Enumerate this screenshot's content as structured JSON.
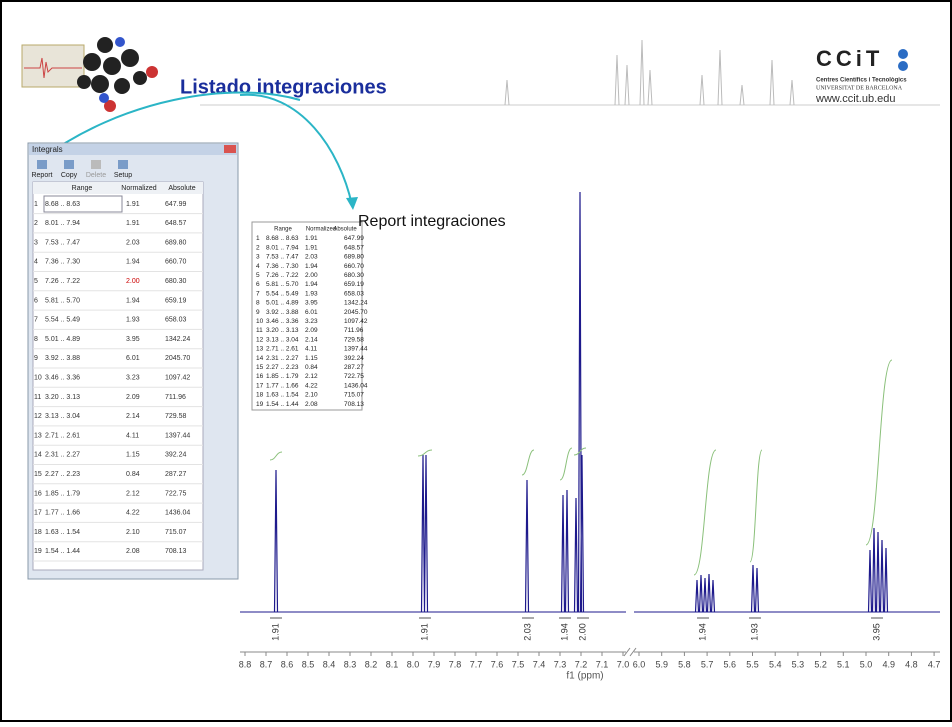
{
  "header": {
    "title": "Listado integraciones",
    "logo": {
      "name": "CCiT",
      "line1": "Centres Científics i Tecnològics",
      "line2": "UNIVERSITAT DE BARCELONA",
      "url": "www.ccit.ub.edu"
    }
  },
  "integrals_window": {
    "title": "Integrals",
    "toolbar": [
      "Report",
      "Copy",
      "Delete",
      "Setup"
    ],
    "columns": [
      "Range",
      "Normalized",
      "Absolute"
    ],
    "rows": [
      [
        "1",
        "8.68 .. 8.63",
        "1.91",
        "647.99"
      ],
      [
        "2",
        "8.01 .. 7.94",
        "1.91",
        "648.57"
      ],
      [
        "3",
        "7.53 .. 7.47",
        "2.03",
        "689.80"
      ],
      [
        "4",
        "7.36 .. 7.30",
        "1.94",
        "660.70"
      ],
      [
        "5",
        "7.26 .. 7.22",
        "2.00",
        "680.30"
      ],
      [
        "6",
        "5.81 .. 5.70",
        "1.94",
        "659.19"
      ],
      [
        "7",
        "5.54 .. 5.49",
        "1.93",
        "658.03"
      ],
      [
        "8",
        "5.01 .. 4.89",
        "3.95",
        "1342.24"
      ],
      [
        "9",
        "3.92 .. 3.88",
        "6.01",
        "2045.70"
      ],
      [
        "10",
        "3.46 .. 3.36",
        "3.23",
        "1097.42"
      ],
      [
        "11",
        "3.20 .. 3.13",
        "2.09",
        "711.96"
      ],
      [
        "12",
        "3.13 .. 3.04",
        "2.14",
        "729.58"
      ],
      [
        "13",
        "2.71 .. 2.61",
        "4.11",
        "1397.44"
      ],
      [
        "14",
        "2.31 .. 2.27",
        "1.15",
        "392.24"
      ],
      [
        "15",
        "2.27 .. 2.23",
        "0.84",
        "287.27"
      ],
      [
        "16",
        "1.85 .. 1.79",
        "2.12",
        "722.75"
      ],
      [
        "17",
        "1.77 .. 1.66",
        "4.22",
        "1436.04"
      ],
      [
        "18",
        "1.63 .. 1.54",
        "2.10",
        "715.07"
      ],
      [
        "19",
        "1.54 .. 1.44",
        "2.08",
        "708.13"
      ]
    ]
  },
  "report": {
    "annotation": "Report  integraciones",
    "columns": [
      "Range",
      "Normalized",
      "Absolute"
    ],
    "rows": [
      [
        "1",
        "8.68 .. 8.63",
        "1.91",
        "647.99"
      ],
      [
        "2",
        "8.01 .. 7.94",
        "1.91",
        "648.57"
      ],
      [
        "3",
        "7.53 .. 7.47",
        "2.03",
        "689.80"
      ],
      [
        "4",
        "7.36 .. 7.30",
        "1.94",
        "660.70"
      ],
      [
        "5",
        "7.26 .. 7.22",
        "2.00",
        "680.30"
      ],
      [
        "6",
        "5.81 .. 5.70",
        "1.94",
        "659.19"
      ],
      [
        "7",
        "5.54 .. 5.49",
        "1.93",
        "658.03"
      ],
      [
        "8",
        "5.01 .. 4.89",
        "3.95",
        "1342.24"
      ],
      [
        "9",
        "3.92 .. 3.88",
        "6.01",
        "2045.70"
      ],
      [
        "10",
        "3.46 .. 3.36",
        "3.23",
        "1097.42"
      ],
      [
        "11",
        "3.20 .. 3.13",
        "2.09",
        "711.96"
      ],
      [
        "12",
        "3.13 .. 3.04",
        "2.14",
        "729.58"
      ],
      [
        "13",
        "2.71 .. 2.61",
        "4.11",
        "1397.44"
      ],
      [
        "14",
        "2.31 .. 2.27",
        "1.15",
        "392.24"
      ],
      [
        "15",
        "2.27 .. 2.23",
        "0.84",
        "287.27"
      ],
      [
        "16",
        "1.85 .. 1.79",
        "2.12",
        "722.75"
      ],
      [
        "17",
        "1.77 .. 1.66",
        "4.22",
        "1436.04"
      ],
      [
        "18",
        "1.63 .. 1.54",
        "2.10",
        "715.07"
      ],
      [
        "19",
        "1.54 .. 1.44",
        "2.08",
        "708.13"
      ]
    ]
  },
  "spectrum": {
    "axis_label": "f1 (ppm)",
    "ticks_left": [
      "8.8",
      "8.7",
      "8.6",
      "8.5",
      "8.4",
      "8.3",
      "8.2",
      "8.1",
      "8.0",
      "7.9",
      "7.8",
      "7.7",
      "7.6",
      "7.5",
      "7.4",
      "7.3",
      "7.2",
      "7.1",
      "7.0"
    ],
    "ticks_right": [
      "6.0",
      "5.9",
      "5.8",
      "5.7",
      "5.6",
      "5.5",
      "5.4",
      "5.3",
      "5.2",
      "5.1",
      "5.0",
      "4.9",
      "4.8",
      "4.7"
    ],
    "integral_labels": [
      "1.91",
      "1.91",
      "2.03",
      "1.94",
      "2.00",
      "1.94",
      "1.93",
      "3.95"
    ]
  }
}
